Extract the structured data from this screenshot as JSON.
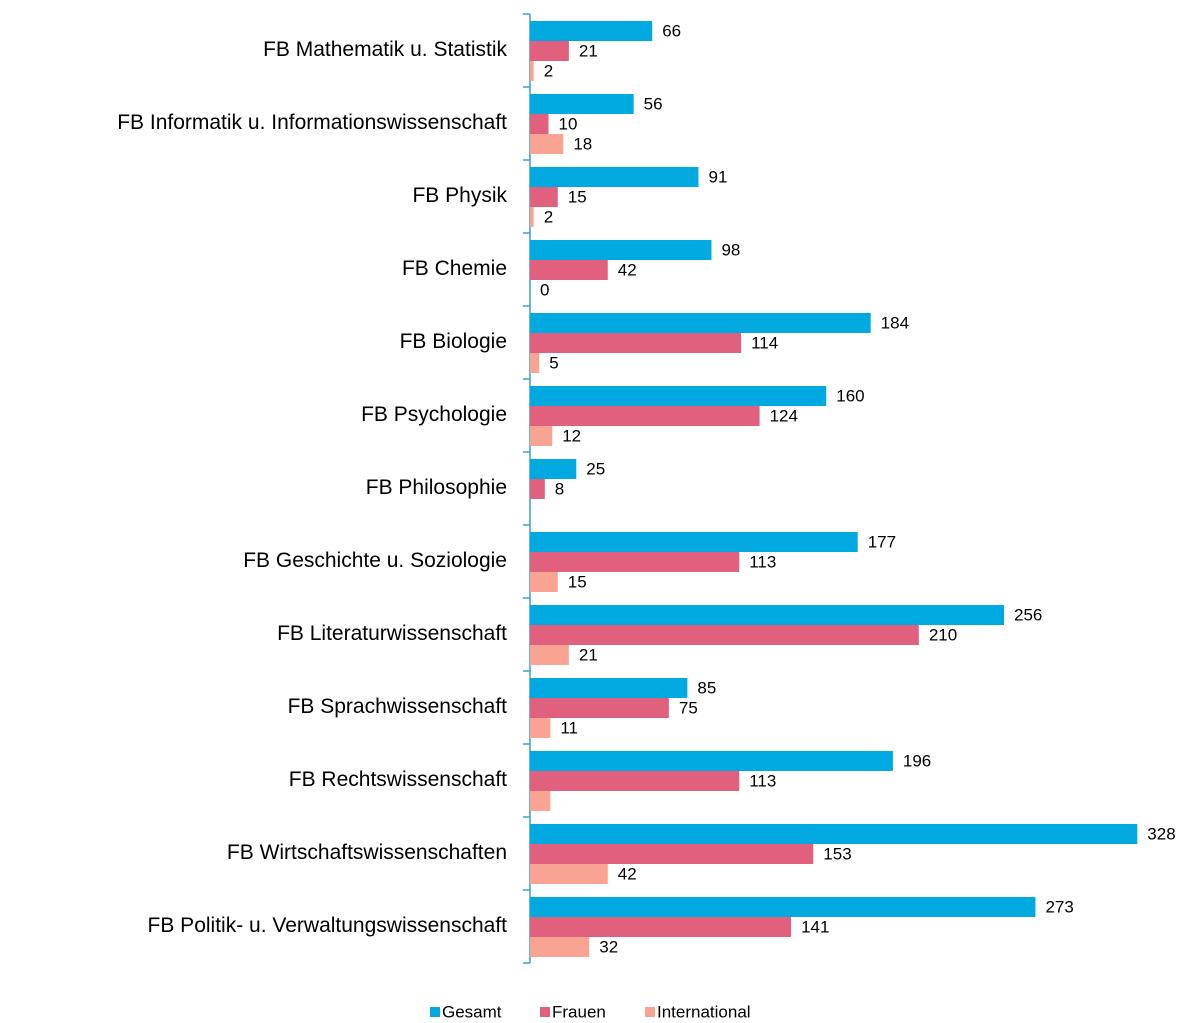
{
  "chart_data": {
    "type": "hbar",
    "categories": [
      "FB Mathematik u. Statistik",
      "FB Informatik u. Informationswissenschaft",
      "FB Physik",
      "FB Chemie",
      "FB Biologie",
      "FB Psychologie",
      "FB Philosophie",
      "FB Geschichte u. Soziologie",
      "FB Literaturwissenschaft",
      "FB Sprachwissenschaft",
      "FB Rechtswissenschaft",
      "FB Wirtschaftswissenschaften",
      "FB Politik- u. Verwaltungswissenschaft"
    ],
    "series": [
      {
        "name": "Gesamt",
        "color": "#00a9e0",
        "values": [
          66,
          56,
          91,
          98,
          184,
          160,
          25,
          177,
          256,
          85,
          196,
          328,
          273
        ]
      },
      {
        "name": "Frauen",
        "color": "#e0607e",
        "values": [
          21,
          10,
          15,
          42,
          114,
          124,
          8,
          113,
          210,
          75,
          113,
          153,
          141
        ]
      },
      {
        "name": "International",
        "color": "#f9a392",
        "values": [
          2,
          18,
          2,
          0,
          5,
          12,
          null,
          15,
          21,
          11,
          11,
          42,
          32
        ],
        "value_labels": [
          "2",
          "18",
          "2",
          "0",
          "5",
          "12",
          null,
          "15",
          "21",
          "11",
          null,
          "42",
          "32"
        ]
      }
    ],
    "xlim": [
      0,
      330
    ],
    "legend": "bottom"
  }
}
